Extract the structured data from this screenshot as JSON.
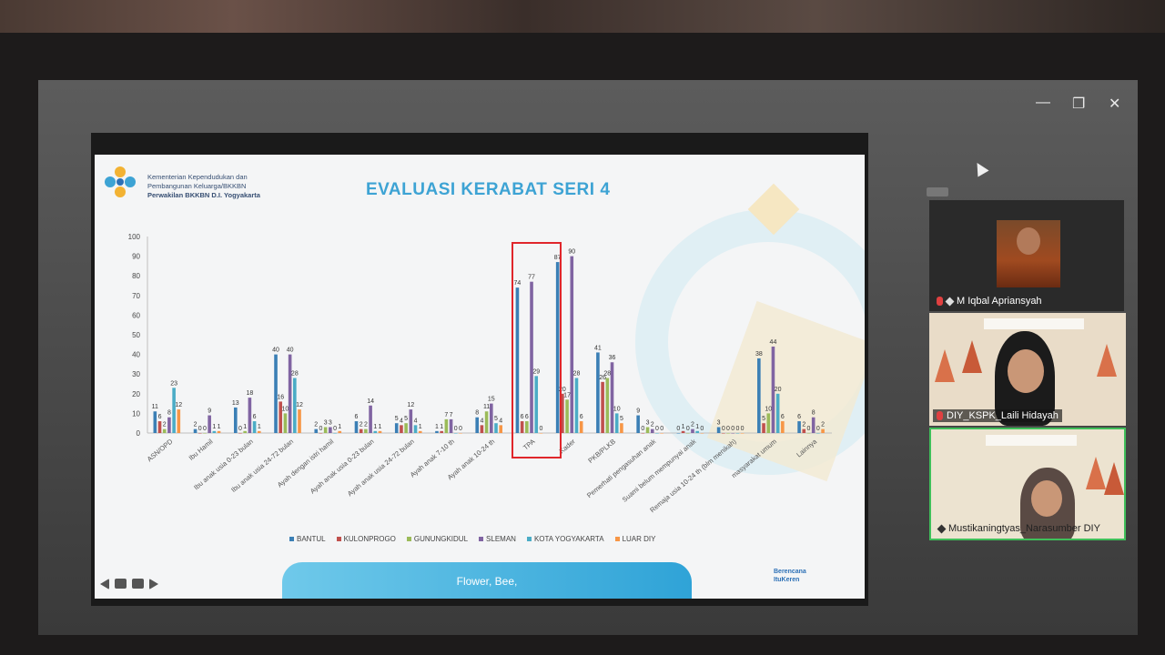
{
  "window_controls": {
    "minimize": "—",
    "restore": "❐",
    "close": "✕"
  },
  "slide": {
    "org_lines": [
      "Kementerian Kependudukan dan",
      "Pembangunan Keluarga/BKKBN",
      "Perwakilan BKKBN D.I. Yogyakarta"
    ],
    "title": "EVALUASI KERABAT SERI 4",
    "banner_text": "Flower, Bee,",
    "brand_lines": [
      "Berencana",
      "ItuKeren"
    ]
  },
  "chart_data": {
    "type": "bar",
    "ylim": [
      0,
      100
    ],
    "yticks": [
      0,
      10,
      20,
      30,
      40,
      50,
      60,
      70,
      80,
      90,
      100
    ],
    "grid": false,
    "legend_position": "bottom",
    "highlighted_category": "TPA",
    "highlight_color": "#e0262b",
    "categories": [
      "ASN/OPD",
      "Ibu Hamil",
      "Ibu anak usia 0-23 bulan",
      "Ibu anak usia 24-72 bulan",
      "Ayah dengan istri hamil",
      "Ayah anak usia 0-23 bulan",
      "Ayah anak usia 24-72 bulan",
      "Ayah anak 7-10 th",
      "Ayah anak 10-24 th",
      "TPA",
      "Kader",
      "PKB/PLKB",
      "Pemerhati pengasuhan anak",
      "Suami belum mempunyai anak",
      "Remaja usia 10-24 th (blm menikah)",
      "masyarakat umum",
      "Lainnya"
    ],
    "series": [
      {
        "name": "BANTUL",
        "color": "#3b7fb5",
        "values": [
          11,
          2,
          13,
          40,
          2,
          6,
          5,
          1,
          8,
          74,
          87,
          41,
          9,
          0,
          3,
          38,
          6
        ]
      },
      {
        "name": "KULONPROGO",
        "color": "#c0504d",
        "values": [
          6,
          0,
          0,
          16,
          0,
          2,
          4,
          1,
          4,
          6,
          20,
          26,
          0,
          1,
          0,
          5,
          2
        ]
      },
      {
        "name": "GUNUNGKIDUL",
        "color": "#9bbb59",
        "values": [
          2,
          0,
          1,
          10,
          3,
          2,
          5,
          7,
          11,
          6,
          17,
          28,
          3,
          0,
          0,
          10,
          0
        ]
      },
      {
        "name": "SLEMAN",
        "color": "#8064a2",
        "values": [
          8,
          9,
          18,
          40,
          3,
          14,
          12,
          7,
          15,
          77,
          90,
          36,
          2,
          2,
          0,
          44,
          8
        ]
      },
      {
        "name": "KOTA YOGYAKARTA",
        "color": "#4bacc6",
        "values": [
          23,
          1,
          6,
          28,
          0,
          1,
          4,
          0,
          5,
          29,
          28,
          10,
          0,
          1,
          0,
          20,
          0
        ]
      },
      {
        "name": "LUAR DIY",
        "color": "#f79646",
        "values": [
          12,
          1,
          1,
          12,
          1,
          1,
          1,
          0,
          4,
          0,
          6,
          5,
          0,
          0,
          0,
          6,
          2
        ]
      }
    ]
  },
  "participants": [
    {
      "name": "M Iqbal Apriansyah"
    },
    {
      "name": "DIY_KSPK_Laili Hidayah"
    },
    {
      "name": "Mustikaningtyas_Narasumber DIY"
    }
  ]
}
